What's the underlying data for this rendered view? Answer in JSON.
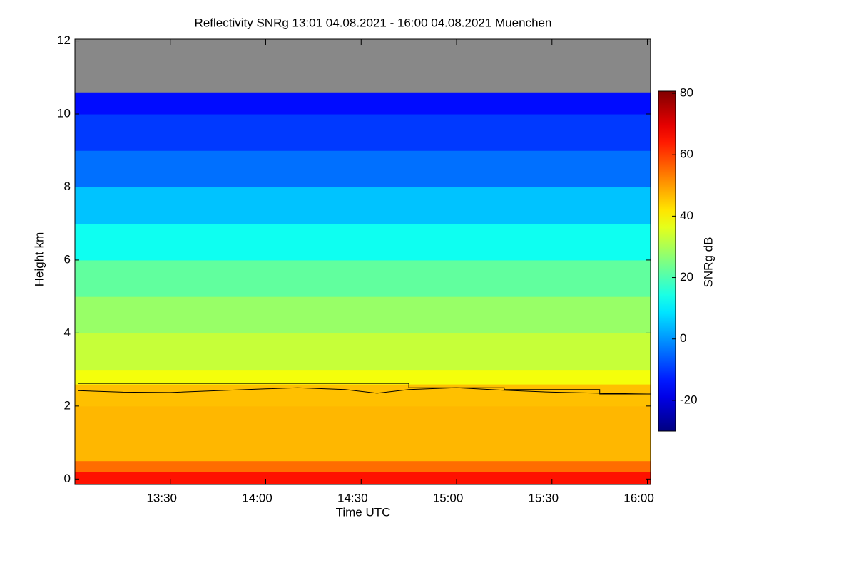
{
  "chart_data": {
    "type": "heatmap",
    "title": "Reflectivity SNRg   13:01 04.08.2021 - 16:00 04.08.2021 Muenchen",
    "x_label": "Time UTC",
    "y_label": "Height km",
    "colorbar_label": "SNRg dB",
    "colormap": "jet",
    "nodata_color": "#888888",
    "xlim": [
      780,
      961
    ],
    "xticks": [
      {
        "value": 810,
        "label": "13:30"
      },
      {
        "value": 840,
        "label": "14:00"
      },
      {
        "value": 870,
        "label": "14:30"
      },
      {
        "value": 900,
        "label": "15:00"
      },
      {
        "value": 930,
        "label": "15:30"
      },
      {
        "value": 960,
        "label": "16:00"
      }
    ],
    "ylim": [
      -0.15,
      12.05
    ],
    "yticks": [
      0,
      2,
      4,
      6,
      8,
      10,
      12
    ],
    "zlim": [
      -30,
      80.7
    ],
    "zticks": [
      -20,
      0,
      20,
      40,
      60,
      80
    ],
    "y_bins": [
      -0.15,
      0.2,
      0.5,
      2.0,
      2.6,
      3.0,
      4.0,
      5.0,
      6.0,
      7.0,
      8.0,
      9.0,
      10.0,
      10.6,
      12.05
    ],
    "z": [
      65,
      55,
      47,
      46,
      38,
      33,
      28,
      22,
      13,
      5,
      -4,
      -10,
      -15,
      null
    ],
    "series": [
      {
        "color": "#000000",
        "x": [
          781,
          885,
          885,
          915,
          915,
          945,
          945,
          961
        ],
        "values": [
          2.62,
          2.62,
          2.5,
          2.5,
          2.45,
          2.45,
          2.33,
          2.33
        ]
      },
      {
        "color": "#000000",
        "x": [
          781,
          795,
          810,
          825,
          840,
          850,
          865,
          875,
          885,
          900,
          915,
          930,
          945,
          960
        ],
        "values": [
          2.42,
          2.38,
          2.37,
          2.42,
          2.47,
          2.5,
          2.45,
          2.35,
          2.45,
          2.5,
          2.43,
          2.38,
          2.35,
          2.33
        ]
      }
    ]
  }
}
